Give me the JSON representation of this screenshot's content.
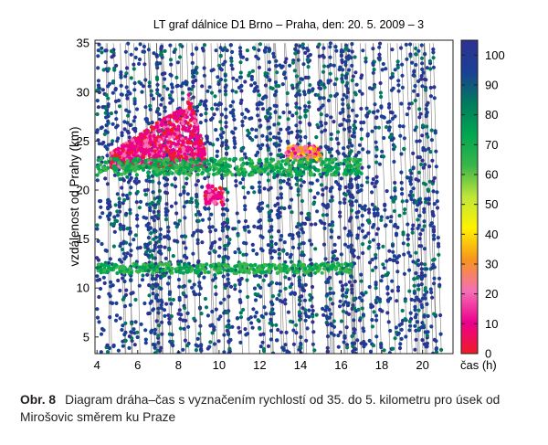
{
  "chart_data": {
    "type": "scatter",
    "title": "LT graf dálnice D1 Brno – Praha, den: 20. 5. 2009 – 3",
    "xlabel": "čas (h)",
    "ylabel": "vzdálenost od Prahy (km)",
    "xlim": [
      3.9,
      21.5
    ],
    "ylim": [
      3.3,
      35.3
    ],
    "xticks": [
      4,
      6,
      8,
      10,
      12,
      14,
      16,
      18,
      20
    ],
    "yticks": [
      5,
      10,
      15,
      20,
      25,
      30,
      35
    ],
    "colorbar": {
      "label": "",
      "range": [
        0,
        105
      ],
      "ticks": [
        0,
        10,
        20,
        30,
        40,
        50,
        60,
        70,
        80,
        90,
        100
      ],
      "colormap": [
        "#ee1c25",
        "#ec008c",
        "#f56fb6",
        "#f7941d",
        "#fff200",
        "#bfe639",
        "#39b54a",
        "#00a651",
        "#007a5e",
        "#1b3f95",
        "#2e3192"
      ]
    },
    "grid": false,
    "legend": "none",
    "regions": [
      {
        "speed_range": [
          0,
          20
        ],
        "t_range": [
          4.7,
          9.3
        ],
        "km_range": [
          22.3,
          30.0
        ]
      },
      {
        "speed_range": [
          0,
          20
        ],
        "t_range": [
          9.3,
          10.2
        ],
        "km_range": [
          18.5,
          20.5
        ]
      },
      {
        "speed_range": [
          10,
          40
        ],
        "t_range": [
          13.3,
          15.0
        ],
        "km_range": [
          23.0,
          24.5
        ]
      },
      {
        "speed_range": [
          60,
          80
        ],
        "t_range": [
          4.0,
          17.0
        ],
        "km_range": [
          21.5,
          23.2
        ]
      },
      {
        "speed_range": [
          60,
          80
        ],
        "t_range": [
          4.0,
          16.5
        ],
        "km_range": [
          11.5,
          12.5
        ]
      },
      {
        "speed_range": [
          85,
          105
        ],
        "t_range": [
          4.0,
          20.6
        ],
        "km_range": [
          3.3,
          35.0
        ]
      }
    ]
  },
  "caption": {
    "number": "Obr. 8",
    "text": "Diagram dráha–čas s vyznačením rychlostí od 35. do 5. kilometru pro úsek od Mirošovic směrem ku Praze"
  }
}
